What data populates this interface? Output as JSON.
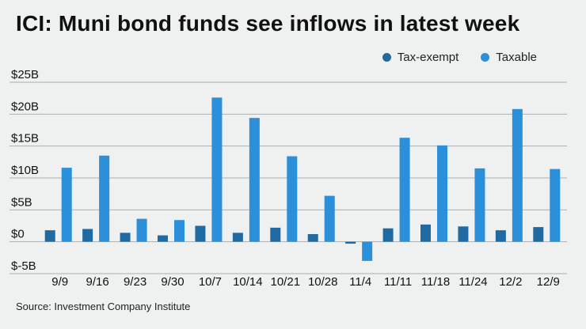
{
  "title": "ICI: Muni bond funds see inflows in latest week",
  "source": "Source: Investment Company Institute",
  "colors": {
    "tax_exempt": "#1f6aa3",
    "taxable": "#2b8fd9",
    "grid": "#a9b0b6"
  },
  "chart_data": {
    "type": "bar",
    "title": "ICI: Muni bond funds see inflows in latest week",
    "xlabel": "",
    "ylabel": "",
    "ylim": [
      -5,
      25
    ],
    "yticks": [
      -5,
      0,
      5,
      10,
      15,
      20,
      25
    ],
    "ytick_labels": [
      "$-5B",
      "$0",
      "$5B",
      "$10B",
      "$15B",
      "$20B",
      "$25B"
    ],
    "categories": [
      "9/9",
      "9/16",
      "9/23",
      "9/30",
      "10/7",
      "10/14",
      "10/21",
      "10/28",
      "11/4",
      "11/11",
      "11/18",
      "11/24",
      "12/2",
      "12/9"
    ],
    "series": [
      {
        "name": "Tax-exempt",
        "values": [
          1.8,
          2.0,
          1.4,
          1.0,
          2.5,
          1.4,
          2.2,
          1.2,
          -0.3,
          2.1,
          2.7,
          2.4,
          1.8,
          2.3
        ]
      },
      {
        "name": "Taxable",
        "values": [
          11.6,
          13.5,
          3.6,
          3.4,
          22.6,
          19.4,
          13.4,
          7.2,
          -3.0,
          16.3,
          15.1,
          11.5,
          20.8,
          11.4
        ]
      }
    ],
    "legend": "top-right",
    "grid": true
  }
}
